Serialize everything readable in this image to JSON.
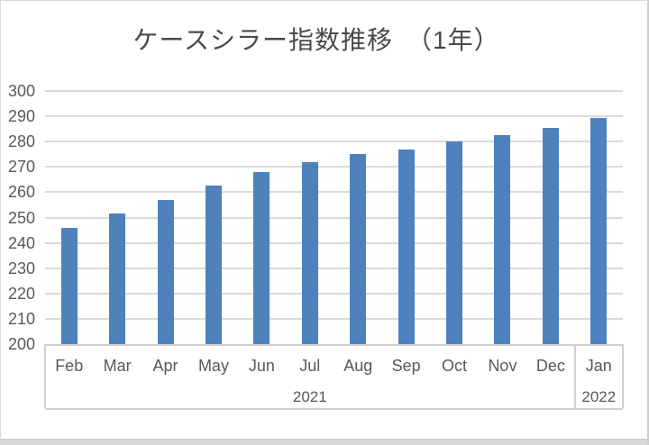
{
  "title": "ケースシラー指数推移　（1年）",
  "chart_data": {
    "type": "bar",
    "title": "ケースシラー指数推移　（1年）",
    "categories": [
      "Feb",
      "Mar",
      "Apr",
      "May",
      "Jun",
      "Jul",
      "Aug",
      "Sep",
      "Oct",
      "Nov",
      "Dec",
      "Jan"
    ],
    "values": [
      246,
      251.5,
      257,
      262.5,
      268,
      272,
      275,
      277,
      280,
      282.5,
      285.5,
      289.5
    ],
    "year_groups": [
      {
        "label": "2021",
        "start": 0,
        "span": 11
      },
      {
        "label": "2022",
        "start": 11,
        "span": 1
      }
    ],
    "xlabel": "",
    "ylabel": "",
    "ylim": [
      200,
      300
    ],
    "y_ticks": [
      300,
      290,
      280,
      270,
      260,
      250,
      240,
      230,
      220,
      210,
      200
    ],
    "grid": true,
    "legend": false,
    "bar_color": "#4F81BD",
    "gridline_color": "#DADADA",
    "axis_line_color": "#D0D0D0",
    "label_color": "#595959",
    "title_color": "#4A4A4A"
  }
}
